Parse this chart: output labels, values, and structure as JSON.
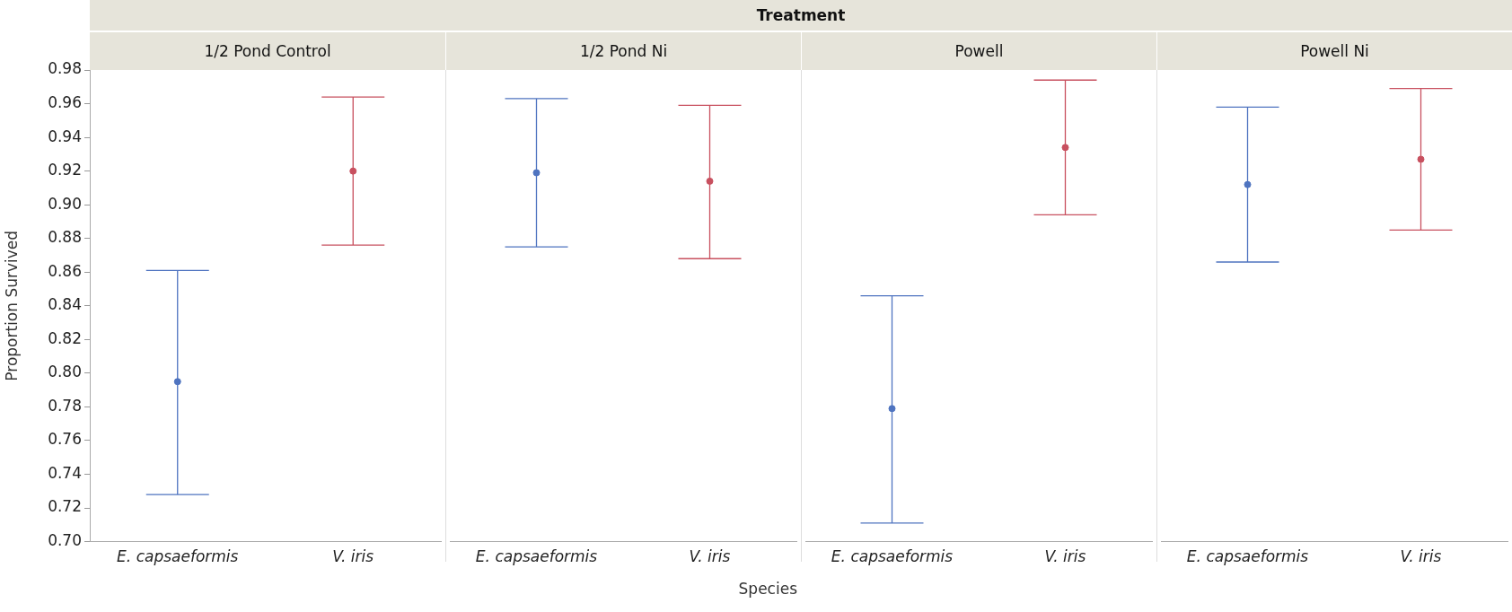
{
  "chart_data": [
    {
      "type": "scatter",
      "title": "1/2 Pond Control",
      "ylabel": "Proportion Survived",
      "annotations": [
        "Treatment"
      ],
      "categories": [
        "E. capsaeformis",
        "V. iris"
      ],
      "values": [
        0.795,
        0.92
      ],
      "colors": [
        "#4f74c0",
        "#c8505f"
      ],
      "errors": [
        [
          0.728,
          0.861
        ],
        [
          0.876,
          0.964
        ]
      ],
      "ylim": [
        0.7,
        0.98
      ],
      "yticks": [
        {
          "value": 0.7,
          "label": "0.70"
        },
        0.72,
        0.74,
        0.76,
        0.78,
        {
          "value": 0.8,
          "label": "0.80"
        },
        0.82,
        0.84,
        0.86,
        0.88,
        {
          "value": 0.9,
          "label": "0.90"
        },
        0.92,
        0.94,
        0.96,
        0.98
      ],
      "marker": "circle"
    },
    {
      "type": "scatter",
      "title": "1/2 Pond Ni",
      "xlabel": "Species",
      "categories": [
        "E. capsaeformis",
        "V. iris"
      ],
      "values": [
        0.919,
        0.914
      ],
      "colors": [
        "#4f74c0",
        "#c8505f"
      ],
      "errors": [
        [
          0.875,
          0.963
        ],
        [
          0.868,
          0.959
        ]
      ],
      "ylim": [
        0.7,
        0.98
      ],
      "tick_labels": "x",
      "marker": "circle"
    },
    {
      "type": "scatter",
      "title": "Powell",
      "categories": [
        "E. capsaeformis",
        "V. iris"
      ],
      "values": [
        0.779,
        0.934
      ],
      "colors": [
        "#4f74c0",
        "#c8505f"
      ],
      "errors": [
        [
          0.711,
          0.846
        ],
        [
          0.894,
          0.974
        ]
      ],
      "ylim": [
        0.7,
        0.98
      ],
      "tick_labels": "x",
      "marker": "circle"
    },
    {
      "type": "scatter",
      "title": "Powell Ni",
      "categories": [
        "E. capsaeformis",
        "V. iris"
      ],
      "values": [
        0.912,
        0.927
      ],
      "colors": [
        "#4f74c0",
        "#c8505f"
      ],
      "errors": [
        [
          0.866,
          0.958
        ],
        [
          0.885,
          0.969
        ]
      ],
      "ylim": [
        0.7,
        0.98
      ],
      "tick_labels": "x",
      "marker": "circle"
    }
  ]
}
